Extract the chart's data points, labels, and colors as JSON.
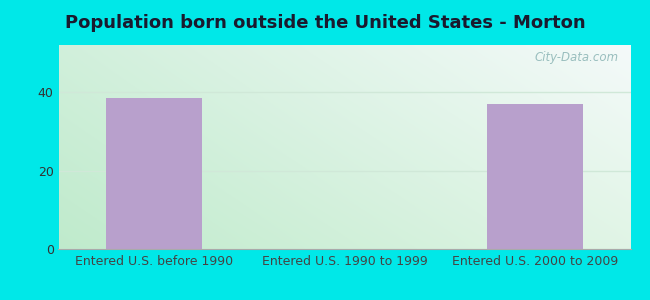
{
  "title": "Population born outside the United States - Morton",
  "categories": [
    "Entered U.S. before 1990",
    "Entered U.S. 1990 to 1999",
    "Entered U.S. 2000 to 2009"
  ],
  "values": [
    38.5,
    0,
    37.0
  ],
  "bar_color": "#b8a0cc",
  "ylim": [
    0,
    52
  ],
  "yticks": [
    0,
    20,
    40
  ],
  "outer_bg": "#00e8e8",
  "plot_bg_topleft": "#c8e8d0",
  "plot_bg_topright": "#e8f4f0",
  "plot_bg_bottomleft": "#c0e8c8",
  "plot_bg_bottomright": "#ffffff",
  "title_fontsize": 13,
  "tick_fontsize": 9,
  "bar_width": 0.5,
  "watermark": "City-Data.com"
}
